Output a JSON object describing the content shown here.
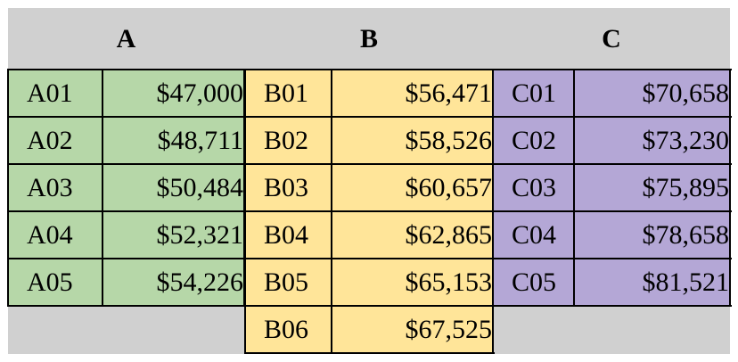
{
  "groups": [
    {
      "key": "a",
      "header": "A",
      "color": "#b6d7a8",
      "rows": [
        {
          "code": "A01",
          "amount": "$47,000"
        },
        {
          "code": "A02",
          "amount": "$48,711"
        },
        {
          "code": "A03",
          "amount": "$50,484"
        },
        {
          "code": "A04",
          "amount": "$52,321"
        },
        {
          "code": "A05",
          "amount": "$54,226"
        }
      ]
    },
    {
      "key": "b",
      "header": "B",
      "color": "#ffe599",
      "rows": [
        {
          "code": "B01",
          "amount": "$56,471"
        },
        {
          "code": "B02",
          "amount": "$58,526"
        },
        {
          "code": "B03",
          "amount": "$60,657"
        },
        {
          "code": "B04",
          "amount": "$62,865"
        },
        {
          "code": "B05",
          "amount": "$65,153"
        },
        {
          "code": "B06",
          "amount": "$67,525"
        }
      ]
    },
    {
      "key": "c",
      "header": "C",
      "color": "#b4a7d6",
      "rows": [
        {
          "code": "C01",
          "amount": "$70,658"
        },
        {
          "code": "C02",
          "amount": "$73,230"
        },
        {
          "code": "C03",
          "amount": "$75,895"
        },
        {
          "code": "C04",
          "amount": "$78,658"
        },
        {
          "code": "C05",
          "amount": "$81,521"
        }
      ]
    }
  ],
  "background_color": "#d0d0d0"
}
